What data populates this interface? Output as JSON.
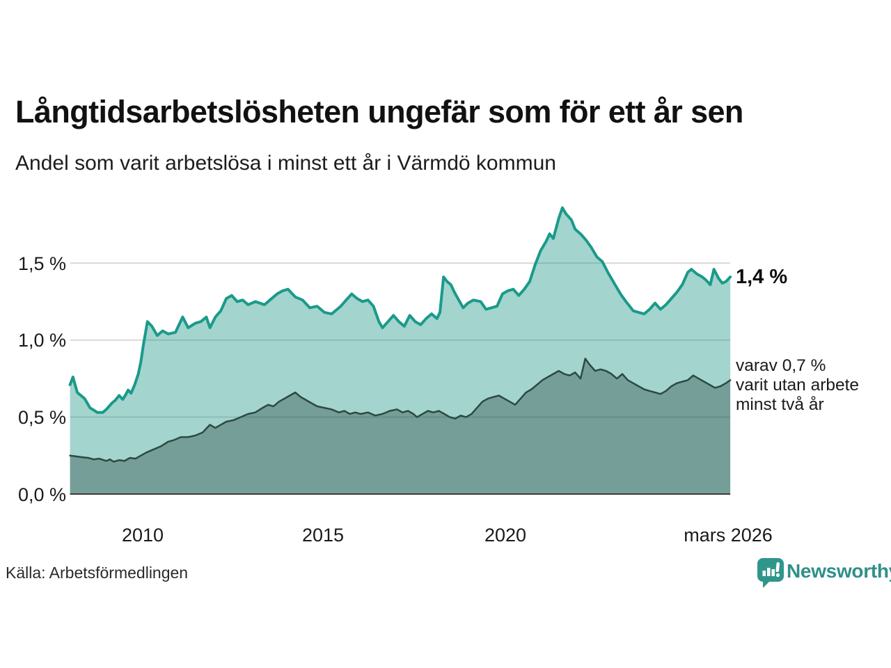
{
  "header": {
    "title": "Långtidsarbetslösheten ungefär som för ett år sen",
    "subtitle": "Andel som varit arbetslösa i minst ett år i Värmdö kommun"
  },
  "footer": {
    "source": "Källa: Arbetsförmedlingen",
    "brand": "Newsworthy"
  },
  "chart_data": {
    "type": "area",
    "title": "Långtidsarbetslösheten ungefär som för ett år sen",
    "subtitle": "Andel som varit arbetslösa i minst ett år i Värmdö kommun",
    "x_unit": "year",
    "y_unit": "percent",
    "xlim": [
      2008.0,
      2026.17
    ],
    "ylim": [
      0,
      1.9
    ],
    "grid": "horizontal",
    "yticks": [
      {
        "label": "0,0 %",
        "value": 0.0
      },
      {
        "label": "0,5 %",
        "value": 0.5
      },
      {
        "label": "1,0 %",
        "value": 1.0
      },
      {
        "label": "1,5 %",
        "value": 1.5
      }
    ],
    "xticks": [
      {
        "label": "2010",
        "value": 2010
      },
      {
        "label": "2015",
        "value": 2015
      },
      {
        "label": "2020",
        "value": 2020
      },
      {
        "label": "mars 2026",
        "value": 2026.17
      }
    ],
    "annotations": {
      "main": {
        "text": "1,4 %"
      },
      "secondary": {
        "lines": [
          "varav 0,7 %",
          "varit utan arbete",
          "minst två år"
        ]
      }
    },
    "colors": {
      "line_long": "#1a9a8a",
      "fill_long": "rgba(26,148,132,0.40)",
      "line_verylong": "#2b4a42",
      "fill_verylong": "rgba(31,56,50,0.34)",
      "gridline": "#d9d9d9",
      "axis": "#3b3b3b",
      "brand_teal": "#2f9088"
    },
    "series": [
      {
        "name": "Arbetslösa minst ett år",
        "end_value_label": "1,4 %",
        "points": [
          [
            2008.0,
            0.71
          ],
          [
            2008.08,
            0.76
          ],
          [
            2008.2,
            0.66
          ],
          [
            2008.4,
            0.62
          ],
          [
            2008.55,
            0.56
          ],
          [
            2008.75,
            0.53
          ],
          [
            2008.9,
            0.53
          ],
          [
            2009.0,
            0.55
          ],
          [
            2009.15,
            0.59
          ],
          [
            2009.25,
            0.61
          ],
          [
            2009.35,
            0.64
          ],
          [
            2009.45,
            0.615
          ],
          [
            2009.52,
            0.64
          ],
          [
            2009.6,
            0.675
          ],
          [
            2009.68,
            0.655
          ],
          [
            2009.78,
            0.71
          ],
          [
            2009.88,
            0.78
          ],
          [
            2009.95,
            0.86
          ],
          [
            2010.02,
            0.97
          ],
          [
            2010.13,
            1.12
          ],
          [
            2010.25,
            1.09
          ],
          [
            2010.4,
            1.03
          ],
          [
            2010.55,
            1.06
          ],
          [
            2010.7,
            1.04
          ],
          [
            2010.9,
            1.05
          ],
          [
            2011.1,
            1.15
          ],
          [
            2011.25,
            1.08
          ],
          [
            2011.45,
            1.11
          ],
          [
            2011.6,
            1.12
          ],
          [
            2011.75,
            1.15
          ],
          [
            2011.85,
            1.08
          ],
          [
            2012.0,
            1.15
          ],
          [
            2012.15,
            1.19
          ],
          [
            2012.3,
            1.27
          ],
          [
            2012.45,
            1.29
          ],
          [
            2012.6,
            1.25
          ],
          [
            2012.75,
            1.26
          ],
          [
            2012.9,
            1.23
          ],
          [
            2013.1,
            1.25
          ],
          [
            2013.35,
            1.23
          ],
          [
            2013.5,
            1.26
          ],
          [
            2013.7,
            1.3
          ],
          [
            2013.85,
            1.32
          ],
          [
            2014.0,
            1.33
          ],
          [
            2014.2,
            1.28
          ],
          [
            2014.4,
            1.26
          ],
          [
            2014.6,
            1.21
          ],
          [
            2014.8,
            1.22
          ],
          [
            2015.0,
            1.18
          ],
          [
            2015.2,
            1.17
          ],
          [
            2015.45,
            1.22
          ],
          [
            2015.6,
            1.26
          ],
          [
            2015.75,
            1.3
          ],
          [
            2015.9,
            1.27
          ],
          [
            2016.05,
            1.25
          ],
          [
            2016.2,
            1.26
          ],
          [
            2016.35,
            1.22
          ],
          [
            2016.5,
            1.12
          ],
          [
            2016.6,
            1.08
          ],
          [
            2016.75,
            1.12
          ],
          [
            2016.9,
            1.16
          ],
          [
            2017.05,
            1.12
          ],
          [
            2017.2,
            1.09
          ],
          [
            2017.35,
            1.16
          ],
          [
            2017.5,
            1.12
          ],
          [
            2017.65,
            1.1
          ],
          [
            2017.8,
            1.14
          ],
          [
            2017.95,
            1.17
          ],
          [
            2018.1,
            1.14
          ],
          [
            2018.18,
            1.18
          ],
          [
            2018.28,
            1.41
          ],
          [
            2018.38,
            1.38
          ],
          [
            2018.48,
            1.36
          ],
          [
            2018.58,
            1.31
          ],
          [
            2018.7,
            1.26
          ],
          [
            2018.82,
            1.21
          ],
          [
            2018.95,
            1.24
          ],
          [
            2019.1,
            1.26
          ],
          [
            2019.3,
            1.25
          ],
          [
            2019.45,
            1.2
          ],
          [
            2019.6,
            1.21
          ],
          [
            2019.75,
            1.22
          ],
          [
            2019.9,
            1.3
          ],
          [
            2020.05,
            1.32
          ],
          [
            2020.2,
            1.33
          ],
          [
            2020.35,
            1.29
          ],
          [
            2020.5,
            1.33
          ],
          [
            2020.65,
            1.38
          ],
          [
            2020.8,
            1.49
          ],
          [
            2020.95,
            1.58
          ],
          [
            2021.1,
            1.64
          ],
          [
            2021.2,
            1.69
          ],
          [
            2021.3,
            1.66
          ],
          [
            2021.45,
            1.79
          ],
          [
            2021.55,
            1.86
          ],
          [
            2021.65,
            1.82
          ],
          [
            2021.8,
            1.78
          ],
          [
            2021.9,
            1.72
          ],
          [
            2022.05,
            1.69
          ],
          [
            2022.2,
            1.65
          ],
          [
            2022.35,
            1.6
          ],
          [
            2022.5,
            1.54
          ],
          [
            2022.65,
            1.51
          ],
          [
            2022.8,
            1.44
          ],
          [
            2023.0,
            1.36
          ],
          [
            2023.15,
            1.3
          ],
          [
            2023.3,
            1.25
          ],
          [
            2023.5,
            1.19
          ],
          [
            2023.65,
            1.18
          ],
          [
            2023.8,
            1.17
          ],
          [
            2023.95,
            1.2
          ],
          [
            2024.1,
            1.24
          ],
          [
            2024.25,
            1.2
          ],
          [
            2024.4,
            1.23
          ],
          [
            2024.55,
            1.27
          ],
          [
            2024.7,
            1.31
          ],
          [
            2024.85,
            1.36
          ],
          [
            2025.0,
            1.44
          ],
          [
            2025.1,
            1.46
          ],
          [
            2025.25,
            1.43
          ],
          [
            2025.4,
            1.41
          ],
          [
            2025.5,
            1.39
          ],
          [
            2025.62,
            1.36
          ],
          [
            2025.72,
            1.46
          ],
          [
            2025.85,
            1.4
          ],
          [
            2025.95,
            1.37
          ],
          [
            2026.05,
            1.38
          ],
          [
            2026.17,
            1.41
          ]
        ]
      },
      {
        "name": "Varav utan arbete minst två år",
        "end_value_label": "0,7 %",
        "points": [
          [
            2008.0,
            0.25
          ],
          [
            2008.15,
            0.245
          ],
          [
            2008.3,
            0.24
          ],
          [
            2008.5,
            0.235
          ],
          [
            2008.65,
            0.225
          ],
          [
            2008.8,
            0.23
          ],
          [
            2009.0,
            0.215
          ],
          [
            2009.1,
            0.225
          ],
          [
            2009.2,
            0.21
          ],
          [
            2009.35,
            0.22
          ],
          [
            2009.5,
            0.215
          ],
          [
            2009.65,
            0.235
          ],
          [
            2009.8,
            0.23
          ],
          [
            2009.95,
            0.25
          ],
          [
            2010.1,
            0.27
          ],
          [
            2010.3,
            0.29
          ],
          [
            2010.5,
            0.31
          ],
          [
            2010.7,
            0.34
          ],
          [
            2010.85,
            0.35
          ],
          [
            2011.05,
            0.37
          ],
          [
            2011.25,
            0.37
          ],
          [
            2011.45,
            0.38
          ],
          [
            2011.65,
            0.4
          ],
          [
            2011.85,
            0.45
          ],
          [
            2012.0,
            0.43
          ],
          [
            2012.15,
            0.45
          ],
          [
            2012.3,
            0.47
          ],
          [
            2012.5,
            0.48
          ],
          [
            2012.7,
            0.5
          ],
          [
            2012.9,
            0.52
          ],
          [
            2013.1,
            0.53
          ],
          [
            2013.3,
            0.56
          ],
          [
            2013.45,
            0.58
          ],
          [
            2013.6,
            0.57
          ],
          [
            2013.75,
            0.6
          ],
          [
            2013.9,
            0.62
          ],
          [
            2014.05,
            0.64
          ],
          [
            2014.2,
            0.66
          ],
          [
            2014.35,
            0.63
          ],
          [
            2014.5,
            0.61
          ],
          [
            2014.65,
            0.59
          ],
          [
            2014.8,
            0.57
          ],
          [
            2015.0,
            0.56
          ],
          [
            2015.2,
            0.55
          ],
          [
            2015.4,
            0.53
          ],
          [
            2015.55,
            0.54
          ],
          [
            2015.7,
            0.52
          ],
          [
            2015.85,
            0.53
          ],
          [
            2016.0,
            0.52
          ],
          [
            2016.2,
            0.53
          ],
          [
            2016.4,
            0.51
          ],
          [
            2016.6,
            0.52
          ],
          [
            2016.8,
            0.54
          ],
          [
            2017.0,
            0.55
          ],
          [
            2017.15,
            0.53
          ],
          [
            2017.3,
            0.54
          ],
          [
            2017.45,
            0.52
          ],
          [
            2017.55,
            0.5
          ],
          [
            2017.7,
            0.52
          ],
          [
            2017.85,
            0.54
          ],
          [
            2018.0,
            0.53
          ],
          [
            2018.15,
            0.54
          ],
          [
            2018.3,
            0.52
          ],
          [
            2018.45,
            0.5
          ],
          [
            2018.6,
            0.49
          ],
          [
            2018.75,
            0.51
          ],
          [
            2018.9,
            0.5
          ],
          [
            2019.05,
            0.52
          ],
          [
            2019.2,
            0.56
          ],
          [
            2019.35,
            0.6
          ],
          [
            2019.5,
            0.62
          ],
          [
            2019.65,
            0.63
          ],
          [
            2019.8,
            0.64
          ],
          [
            2019.95,
            0.62
          ],
          [
            2020.1,
            0.6
          ],
          [
            2020.25,
            0.58
          ],
          [
            2020.4,
            0.62
          ],
          [
            2020.55,
            0.66
          ],
          [
            2020.7,
            0.68
          ],
          [
            2020.85,
            0.71
          ],
          [
            2021.0,
            0.74
          ],
          [
            2021.15,
            0.76
          ],
          [
            2021.3,
            0.78
          ],
          [
            2021.45,
            0.8
          ],
          [
            2021.6,
            0.78
          ],
          [
            2021.75,
            0.77
          ],
          [
            2021.9,
            0.79
          ],
          [
            2022.05,
            0.75
          ],
          [
            2022.18,
            0.88
          ],
          [
            2022.3,
            0.84
          ],
          [
            2022.45,
            0.8
          ],
          [
            2022.6,
            0.81
          ],
          [
            2022.75,
            0.8
          ],
          [
            2022.9,
            0.78
          ],
          [
            2023.05,
            0.75
          ],
          [
            2023.2,
            0.78
          ],
          [
            2023.35,
            0.74
          ],
          [
            2023.5,
            0.72
          ],
          [
            2023.65,
            0.7
          ],
          [
            2023.8,
            0.68
          ],
          [
            2023.95,
            0.67
          ],
          [
            2024.1,
            0.66
          ],
          [
            2024.25,
            0.65
          ],
          [
            2024.4,
            0.67
          ],
          [
            2024.55,
            0.7
          ],
          [
            2024.7,
            0.72
          ],
          [
            2024.85,
            0.73
          ],
          [
            2025.0,
            0.74
          ],
          [
            2025.15,
            0.77
          ],
          [
            2025.3,
            0.75
          ],
          [
            2025.45,
            0.73
          ],
          [
            2025.6,
            0.71
          ],
          [
            2025.75,
            0.69
          ],
          [
            2025.9,
            0.7
          ],
          [
            2026.05,
            0.72
          ],
          [
            2026.17,
            0.74
          ]
        ]
      }
    ]
  }
}
